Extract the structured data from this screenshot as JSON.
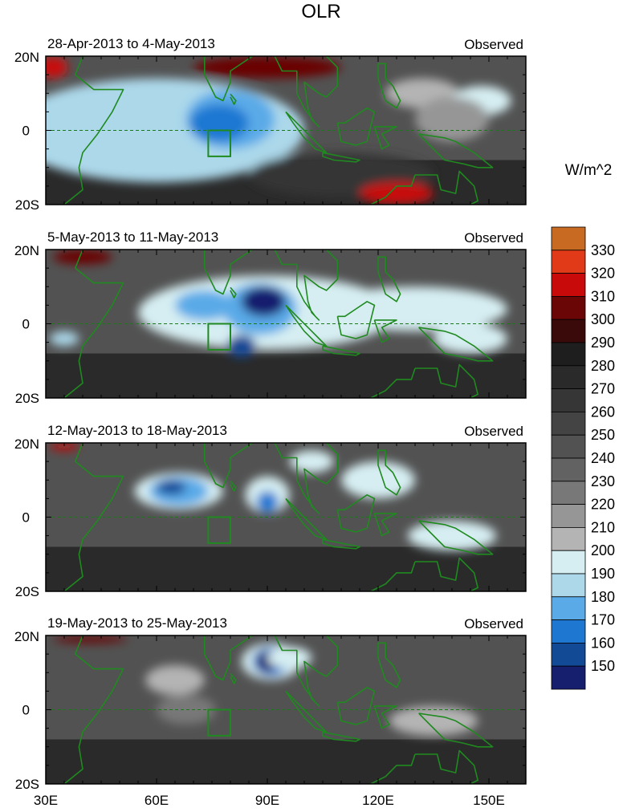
{
  "figure": {
    "title": "OLR",
    "unit_label": "W/m^2"
  },
  "panels": [
    {
      "period": "28-Apr-2013 to 4-May-2013",
      "tag": "Observed"
    },
    {
      "period": "5-May-2013 to 11-May-2013",
      "tag": "Observed"
    },
    {
      "period": "12-May-2013 to 18-May-2013",
      "tag": "Observed"
    },
    {
      "period": "19-May-2013 to 25-May-2013",
      "tag": "Observed"
    }
  ],
  "axes": {
    "lat_ticks": [
      "20N",
      "0",
      "20S"
    ],
    "lon_ticks": [
      "30E",
      "60E",
      "90E",
      "120E",
      "150E"
    ],
    "lon_range": [
      30,
      160
    ],
    "lat_range": [
      -20,
      20
    ]
  },
  "colorbar": {
    "levels": [
      "330",
      "320",
      "310",
      "300",
      "290",
      "280",
      "270",
      "260",
      "250",
      "240",
      "230",
      "220",
      "210",
      "200",
      "190",
      "180",
      "170",
      "160",
      "150"
    ],
    "colors": [
      "#c96a22",
      "#e03a18",
      "#c80a0a",
      "#6a0606",
      "#3a0a0a",
      "#1e1e1e",
      "#2a2a2a",
      "#363636",
      "#444444",
      "#525252",
      "#626262",
      "#787878",
      "#969696",
      "#b4b4b4",
      "#d6eef2",
      "#acd8ea",
      "#5aaae8",
      "#1e78d2",
      "#124a96",
      "#161e6e"
    ]
  },
  "chart_data": {
    "type": "heatmap",
    "title": "OLR",
    "unit": "W/m^2",
    "x_range": [
      30,
      160
    ],
    "y_range": [
      -20,
      20
    ],
    "region_box": {
      "lon": [
        74,
        80
      ],
      "lat": [
        -7,
        0
      ]
    },
    "features": [
      {
        "panel": 0,
        "name": "convection",
        "lon": 77,
        "lat": 2,
        "min_olr": 170
      },
      {
        "panel": 1,
        "name": "convection",
        "lon": 89,
        "lat": 6,
        "min_olr": 150
      },
      {
        "panel": 1,
        "name": "convection",
        "lon": 83,
        "lat": -6,
        "min_olr": 150
      },
      {
        "panel": 2,
        "name": "convection",
        "lon": 66,
        "lat": 7,
        "min_olr": 160
      },
      {
        "panel": 2,
        "name": "convection",
        "lon": 90,
        "lat": 6,
        "min_olr": 160
      },
      {
        "panel": 3,
        "name": "convection",
        "lon": 91,
        "lat": 13,
        "min_olr": 150
      }
    ]
  }
}
